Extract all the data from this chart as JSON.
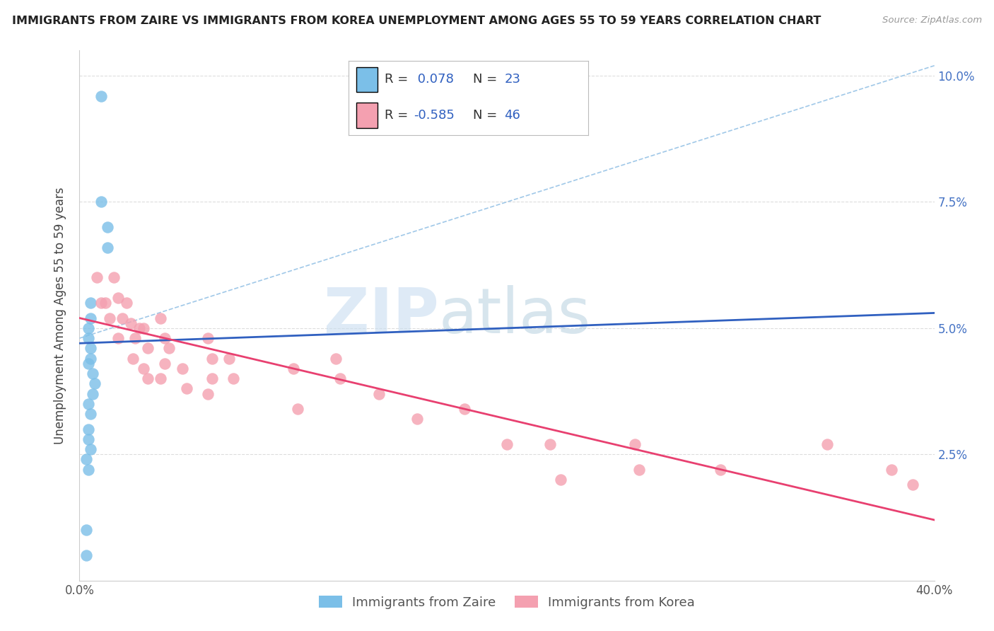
{
  "title": "IMMIGRANTS FROM ZAIRE VS IMMIGRANTS FROM KOREA UNEMPLOYMENT AMONG AGES 55 TO 59 YEARS CORRELATION CHART",
  "source": "Source: ZipAtlas.com",
  "ylabel": "Unemployment Among Ages 55 to 59 years",
  "xlim": [
    0.0,
    0.4
  ],
  "ylim": [
    0.0,
    0.105
  ],
  "zaire_color": "#7bbfe8",
  "korea_color": "#f4a0b0",
  "zaire_R": 0.078,
  "zaire_N": 23,
  "korea_R": -0.585,
  "korea_N": 46,
  "zaire_line_color": "#3060c0",
  "korea_line_color": "#e84070",
  "dashed_line_color": "#a0c8e8",
  "legend_text_color": "#3060c0",
  "zaire_line_x": [
    0.0,
    0.4
  ],
  "zaire_line_y": [
    0.047,
    0.053
  ],
  "korea_line_x": [
    0.0,
    0.4
  ],
  "korea_line_y": [
    0.052,
    0.012
  ],
  "dashed_line_x": [
    0.0,
    0.4
  ],
  "dashed_line_y": [
    0.048,
    0.102
  ],
  "zaire_scatter": [
    [
      0.01,
      0.096
    ],
    [
      0.01,
      0.075
    ],
    [
      0.013,
      0.07
    ],
    [
      0.013,
      0.066
    ],
    [
      0.005,
      0.055
    ],
    [
      0.005,
      0.052
    ],
    [
      0.004,
      0.05
    ],
    [
      0.004,
      0.048
    ],
    [
      0.005,
      0.046
    ],
    [
      0.005,
      0.044
    ],
    [
      0.004,
      0.043
    ],
    [
      0.006,
      0.041
    ],
    [
      0.007,
      0.039
    ],
    [
      0.006,
      0.037
    ],
    [
      0.004,
      0.035
    ],
    [
      0.005,
      0.033
    ],
    [
      0.004,
      0.03
    ],
    [
      0.004,
      0.028
    ],
    [
      0.005,
      0.026
    ],
    [
      0.003,
      0.024
    ],
    [
      0.004,
      0.022
    ],
    [
      0.003,
      0.01
    ],
    [
      0.003,
      0.005
    ]
  ],
  "korea_scatter": [
    [
      0.008,
      0.06
    ],
    [
      0.01,
      0.055
    ],
    [
      0.012,
      0.055
    ],
    [
      0.014,
      0.052
    ],
    [
      0.016,
      0.06
    ],
    [
      0.018,
      0.056
    ],
    [
      0.02,
      0.052
    ],
    [
      0.018,
      0.048
    ],
    [
      0.022,
      0.055
    ],
    [
      0.024,
      0.051
    ],
    [
      0.026,
      0.048
    ],
    [
      0.025,
      0.044
    ],
    [
      0.028,
      0.05
    ],
    [
      0.03,
      0.05
    ],
    [
      0.032,
      0.046
    ],
    [
      0.03,
      0.042
    ],
    [
      0.032,
      0.04
    ],
    [
      0.038,
      0.052
    ],
    [
      0.04,
      0.048
    ],
    [
      0.042,
      0.046
    ],
    [
      0.04,
      0.043
    ],
    [
      0.038,
      0.04
    ],
    [
      0.048,
      0.042
    ],
    [
      0.05,
      0.038
    ],
    [
      0.06,
      0.048
    ],
    [
      0.062,
      0.044
    ],
    [
      0.062,
      0.04
    ],
    [
      0.06,
      0.037
    ],
    [
      0.07,
      0.044
    ],
    [
      0.072,
      0.04
    ],
    [
      0.1,
      0.042
    ],
    [
      0.102,
      0.034
    ],
    [
      0.12,
      0.044
    ],
    [
      0.122,
      0.04
    ],
    [
      0.14,
      0.037
    ],
    [
      0.158,
      0.032
    ],
    [
      0.18,
      0.034
    ],
    [
      0.2,
      0.027
    ],
    [
      0.22,
      0.027
    ],
    [
      0.225,
      0.02
    ],
    [
      0.26,
      0.027
    ],
    [
      0.262,
      0.022
    ],
    [
      0.3,
      0.022
    ],
    [
      0.35,
      0.027
    ],
    [
      0.38,
      0.022
    ],
    [
      0.39,
      0.019
    ]
  ]
}
